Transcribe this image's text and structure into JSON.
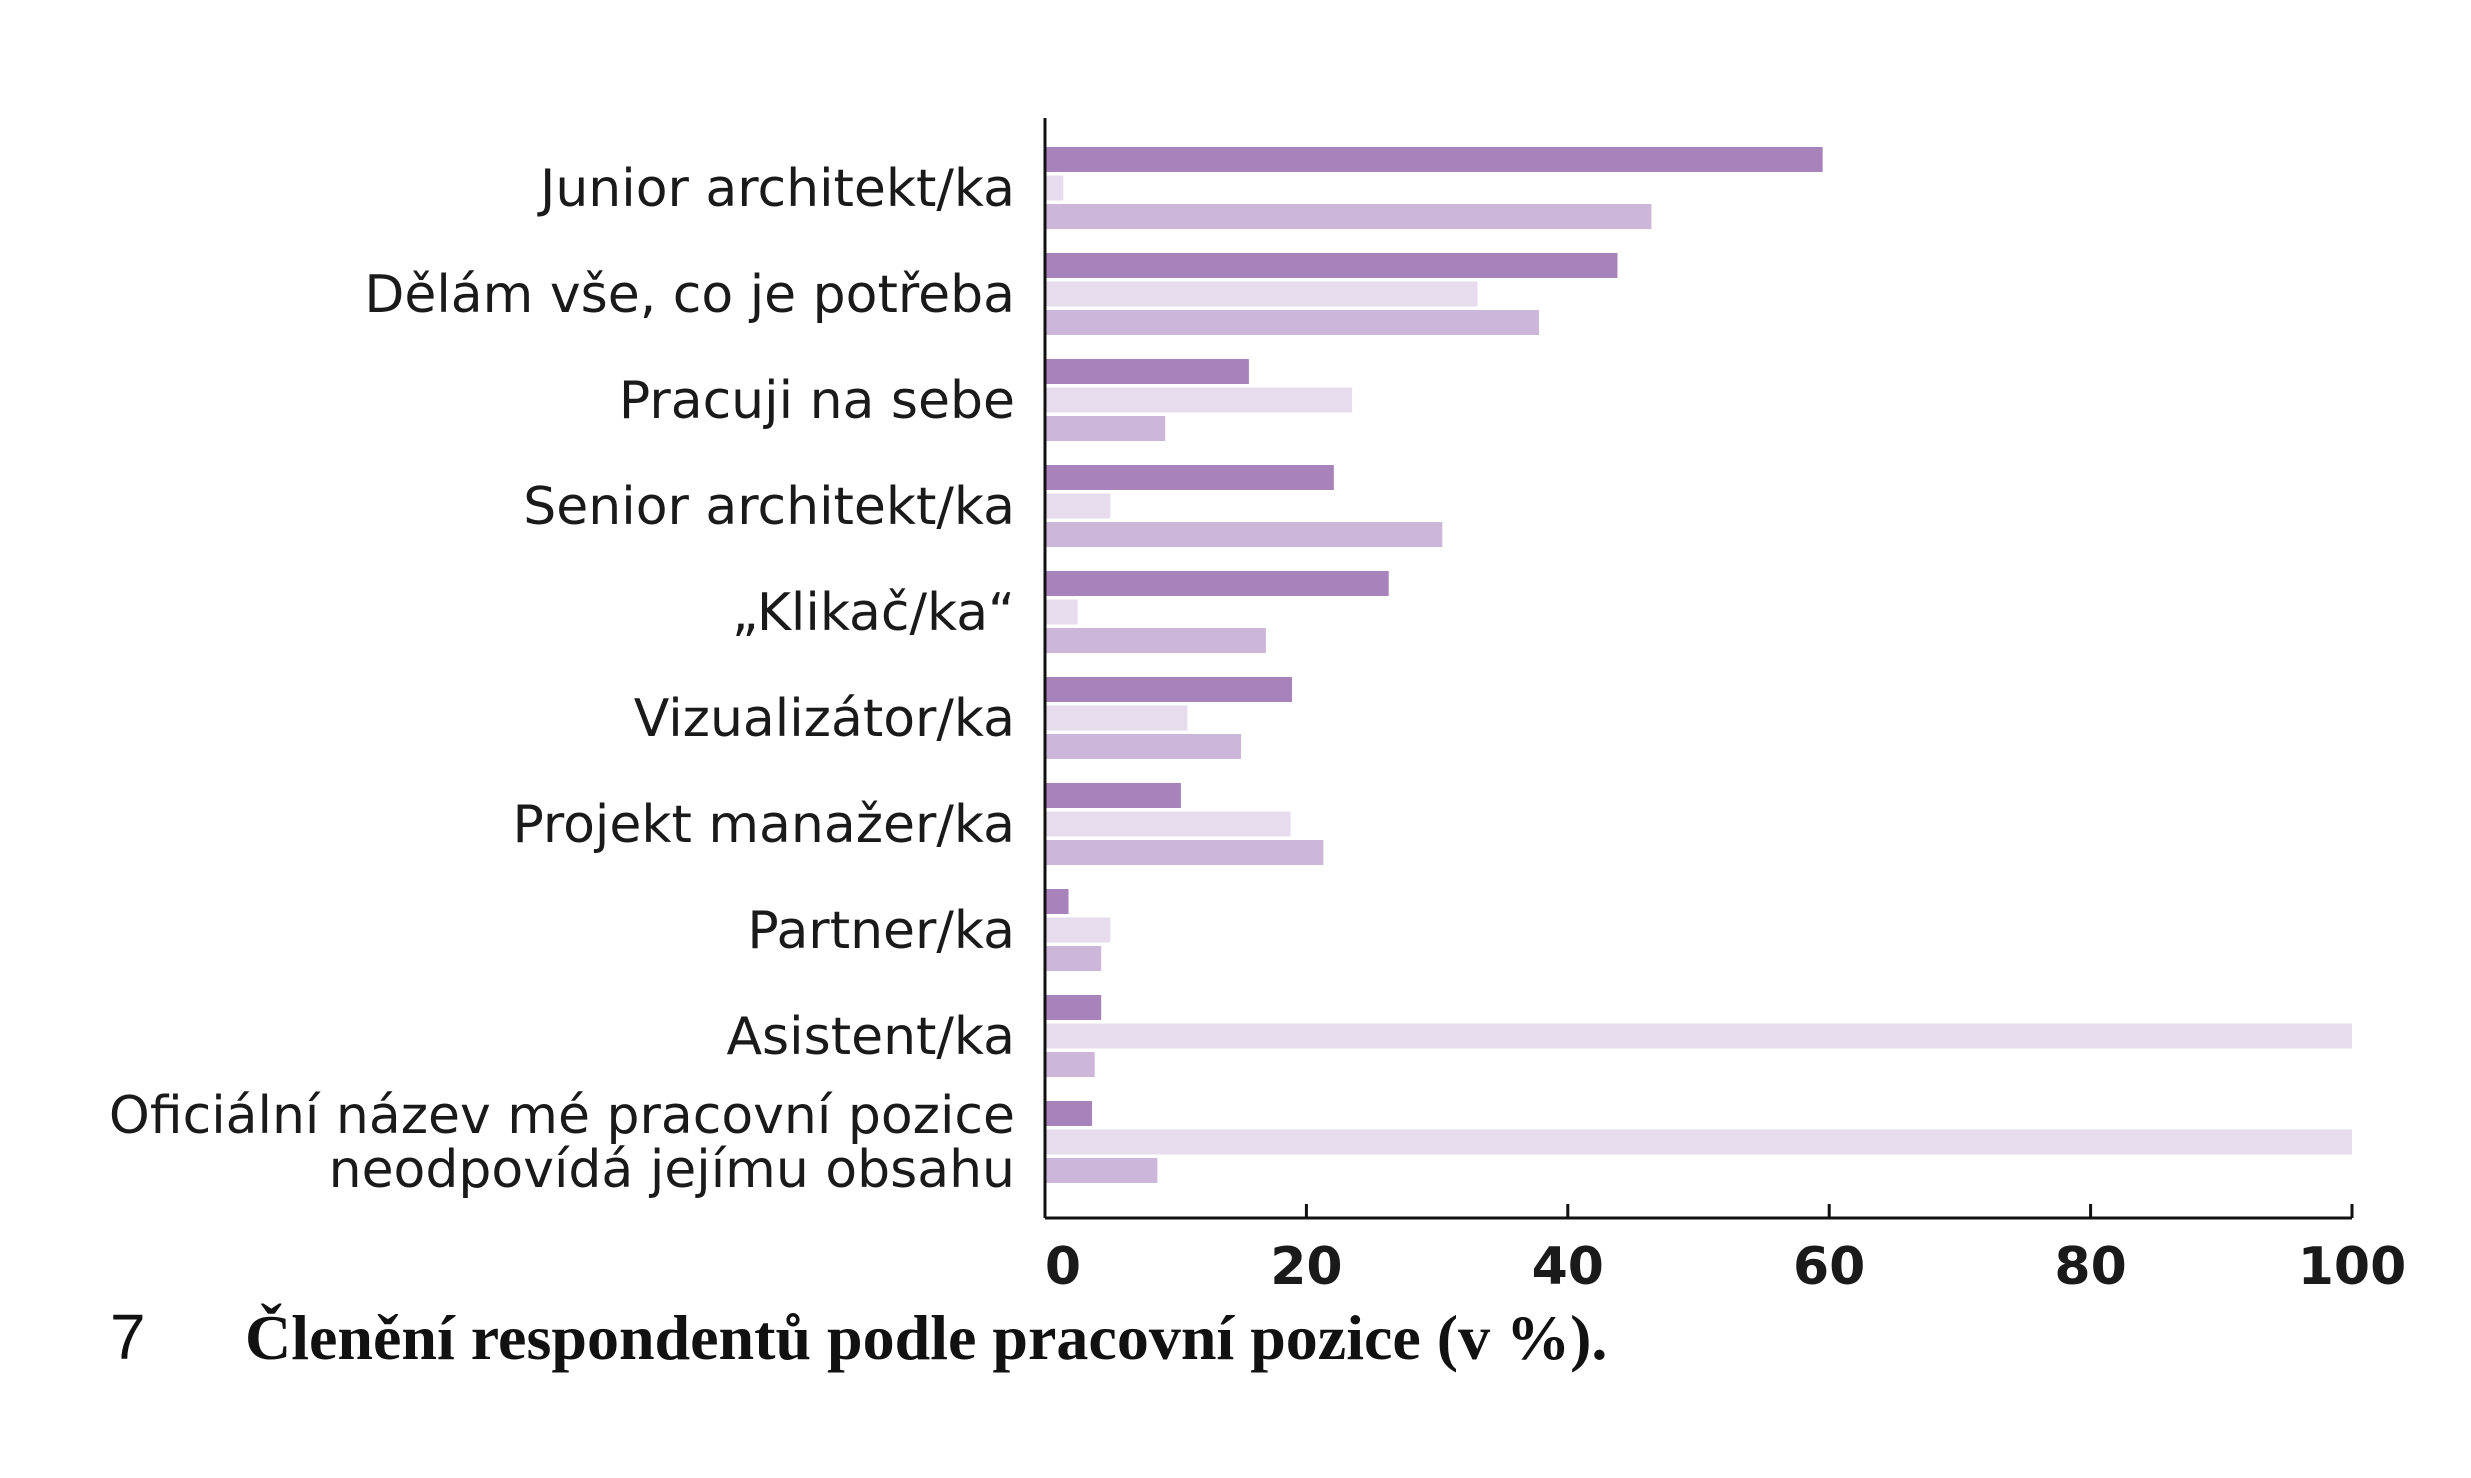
{
  "chart_data": {
    "type": "bar",
    "orientation": "horizontal",
    "categories": [
      [
        "Junior architekt/ka"
      ],
      [
        "Dělám vše, co je potřeba"
      ],
      [
        "Pracuji na sebe"
      ],
      [
        "Senior architekt/ka"
      ],
      [
        "„Klikač/ka“"
      ],
      [
        "Vizualizátor/ka"
      ],
      [
        "Projekt manažer/ka"
      ],
      [
        "Partner/ka"
      ],
      [
        "Asistent/ka"
      ],
      [
        "Oficiální název mé pracovní pozice",
        "neodpovídá jejímu obsahu"
      ]
    ],
    "series": [
      {
        "color": "#a883bb",
        "values": [
          59.5,
          43.8,
          15.6,
          22.1,
          26.3,
          18.9,
          10.4,
          1.8,
          4.3,
          3.6
        ]
      },
      {
        "color": "#e6dcee",
        "values": [
          1.4,
          33.1,
          23.5,
          5.0,
          2.5,
          10.9,
          18.8,
          5.0,
          100,
          100
        ]
      },
      {
        "color": "#ccb6d9",
        "values": [
          46.4,
          37.8,
          9.2,
          30.4,
          16.9,
          15.0,
          21.3,
          4.3,
          3.8,
          8.6
        ]
      }
    ],
    "xlim": [
      0,
      100
    ],
    "xticks": [
      "0",
      "20",
      "40",
      "60",
      "80",
      "100"
    ],
    "xtick_values": [
      0,
      20,
      40,
      60,
      80,
      100
    ],
    "grid": false,
    "legend": "none"
  },
  "caption": {
    "number": "7",
    "title": "Členění respondentů podle pracovní pozice (v %)."
  }
}
